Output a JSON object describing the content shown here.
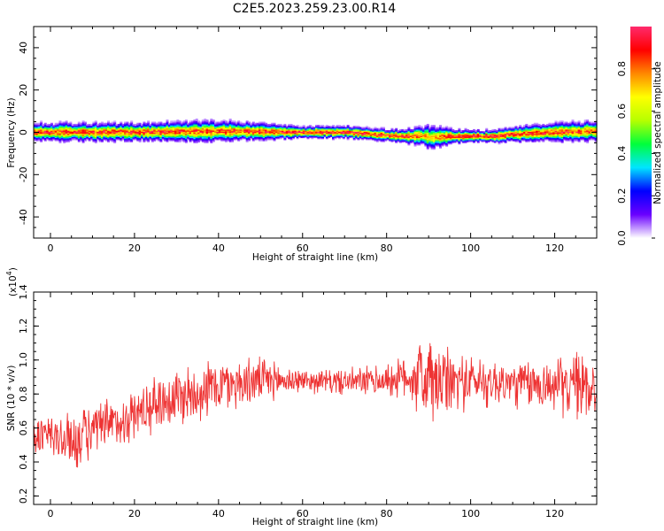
{
  "figure": {
    "title": "C2E5.2023.259.23.00.R14"
  },
  "chart_data": [
    {
      "type": "heatmap",
      "title": "C2E5.2023.259.23.00.R14",
      "xlabel": "Height of straight line (km)",
      "ylabel": "Frequency (Hz)",
      "xlim": [
        -4,
        130
      ],
      "ylim": [
        -50,
        50
      ],
      "x_ticks": [
        0,
        20,
        40,
        60,
        80,
        100,
        120
      ],
      "y_ticks": [
        -40,
        -20,
        0,
        20,
        40
      ],
      "colorbar": {
        "label": "Normalized spectral amplitude",
        "range": [
          0,
          1
        ],
        "ticks": [
          "0.0",
          "0.2",
          "0.4",
          "0.6",
          "0.8"
        ],
        "colors": [
          "#ffffff",
          "#6a00ff",
          "#0000ff",
          "#00e5ff",
          "#00ff3c",
          "#b6ff00",
          "#ffff00",
          "#ff8800",
          "#ff0000",
          "#ff2a6d"
        ]
      },
      "ridge": {
        "description_x": [
          -4,
          20,
          40,
          60,
          70,
          80,
          85,
          88,
          90,
          95,
          100,
          105,
          110,
          120,
          130
        ],
        "center_hz": [
          0,
          0,
          0.5,
          0,
          0,
          -1.5,
          -2,
          -1.5,
          -2.5,
          -2,
          -2,
          -2,
          -1,
          0,
          0.5
        ],
        "halfwidth_hz": [
          3,
          3,
          3.5,
          2,
          2,
          2,
          2.5,
          3,
          4,
          2.5,
          2,
          2,
          2.5,
          3,
          3.5
        ],
        "peak_amplitude": [
          0.9,
          0.9,
          0.85,
          0.95,
          0.95,
          0.9,
          0.9,
          0.8,
          0.7,
          0.9,
          0.95,
          0.95,
          0.9,
          0.9,
          0.85
        ]
      }
    },
    {
      "type": "line",
      "xlabel": "Height of straight line (km)",
      "ylabel": "SNR (10 * v/v)",
      "scale_label": "(x10",
      "scale_exp": "4",
      "scale_close": ")",
      "xlim": [
        -4,
        130
      ],
      "ylim": [
        0.15,
        1.4
      ],
      "x_ticks": [
        0,
        20,
        40,
        60,
        80,
        100,
        120
      ],
      "y_ticks": [
        "0.2",
        "0.4",
        "0.6",
        "0.8",
        "1.0",
        "1.2",
        "1.4"
      ],
      "series_color": "#ee3333",
      "envelope": {
        "x": [
          -4,
          0,
          5,
          10,
          15,
          20,
          25,
          30,
          40,
          50,
          60,
          70,
          80,
          85,
          88,
          90,
          92,
          95,
          100,
          110,
          120,
          125,
          130
        ],
        "mean": [
          0.55,
          0.55,
          0.52,
          0.58,
          0.62,
          0.68,
          0.75,
          0.78,
          0.85,
          0.88,
          0.88,
          0.87,
          0.88,
          0.9,
          0.9,
          0.88,
          0.85,
          0.87,
          0.88,
          0.86,
          0.85,
          0.85,
          0.85
        ],
        "amplitude": [
          0.12,
          0.13,
          0.16,
          0.15,
          0.14,
          0.14,
          0.15,
          0.17,
          0.15,
          0.12,
          0.06,
          0.07,
          0.09,
          0.12,
          0.22,
          0.28,
          0.22,
          0.18,
          0.14,
          0.13,
          0.14,
          0.18,
          0.2
        ]
      }
    }
  ]
}
